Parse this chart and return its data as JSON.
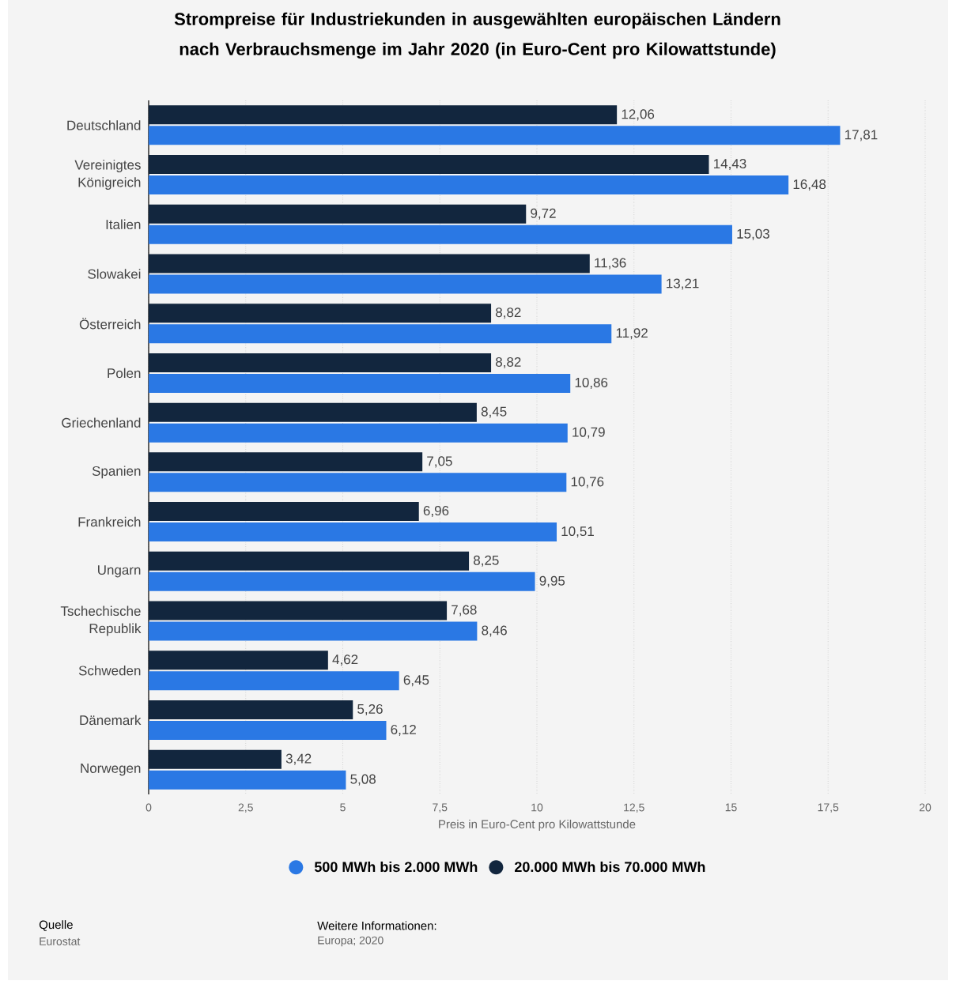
{
  "chart_data": {
    "type": "bar",
    "orientation": "horizontal",
    "title": "Strompreise für Industriekunden in ausgewählten europäischen Ländern nach Verbrauchsmenge im Jahr 2020 (in Euro-Cent pro Kilowattstunde)",
    "xlabel": "Preis in Euro-Cent pro Kilowattstunde",
    "categories": [
      "Deutschland",
      "Vereinigtes Königreich",
      "Italien",
      "Slowakei",
      "Österreich",
      "Polen",
      "Griechenland",
      "Spanien",
      "Frankreich",
      "Ungarn",
      "Tschechische Republik",
      "Schweden",
      "Dänemark",
      "Norwegen"
    ],
    "series": [
      {
        "name": "500 MWh bis 2.000 MWh",
        "color": "#2a78e4",
        "values": [
          17.81,
          16.48,
          15.03,
          13.21,
          11.92,
          10.86,
          10.79,
          10.76,
          10.51,
          9.95,
          8.46,
          6.45,
          6.12,
          5.08
        ],
        "value_labels": [
          "17,81",
          "16,48",
          "15,03",
          "13,21",
          "11,92",
          "10,86",
          "10,79",
          "10,76",
          "10,51",
          "9,95",
          "8,46",
          "6,45",
          "6,12",
          "5,08"
        ]
      },
      {
        "name": "20.000 MWh bis 70.000 MWh",
        "color": "#12263e",
        "values": [
          12.06,
          14.43,
          9.72,
          11.36,
          8.82,
          8.82,
          8.45,
          7.05,
          6.96,
          8.25,
          7.68,
          4.62,
          5.26,
          3.42
        ],
        "value_labels": [
          "12,06",
          "14,43",
          "9,72",
          "11,36",
          "8,82",
          "8,82",
          "8,45",
          "7,05",
          "6,96",
          "8,25",
          "7,68",
          "4,62",
          "5,26",
          "3,42"
        ]
      }
    ],
    "xlim": [
      0,
      20
    ],
    "xticks": [
      0,
      {
        "value": 2.5,
        "label": "2,5"
      },
      5,
      {
        "value": 7.5,
        "label": "7,5"
      },
      10,
      {
        "value": 12.5,
        "label": "12,5"
      },
      15,
      {
        "value": 17.5,
        "label": "17,5"
      },
      20
    ],
    "grid": "x",
    "legend": "bottom",
    "annotations": [
      "Quelle",
      "Eurostat",
      "Weitere Informationen:",
      "Europa; 2020"
    ]
  }
}
